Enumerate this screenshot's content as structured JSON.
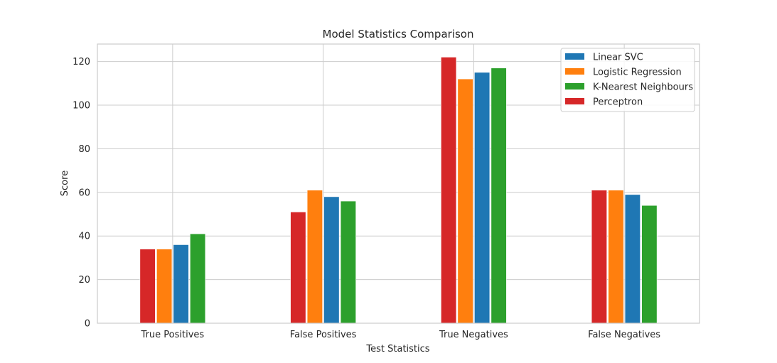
{
  "chart_data": {
    "type": "bar",
    "title": "Model Statistics Comparison",
    "xlabel": "Test Statistics",
    "ylabel": "Score",
    "categories": [
      "True Positives",
      "False Positives",
      "True Negatives",
      "False Negatives"
    ],
    "ylim": [
      0,
      128
    ],
    "yticks": [
      0,
      20,
      40,
      60,
      80,
      100,
      120
    ],
    "grid": true,
    "legend_position": "top-right",
    "bar_order": [
      "Perceptron",
      "Logistic Regression",
      "Linear SVC",
      "K-Nearest Neighbours"
    ],
    "series": [
      {
        "name": "Linear SVC",
        "color": "#1f77b4",
        "values": [
          36,
          58,
          115,
          59
        ]
      },
      {
        "name": "Logistic Regression",
        "color": "#ff7f0e",
        "values": [
          34,
          61,
          112,
          61
        ]
      },
      {
        "name": "K-Nearest Neighbours",
        "color": "#2ca02c",
        "values": [
          41,
          56,
          117,
          54
        ]
      },
      {
        "name": "Perceptron",
        "color": "#d62728",
        "values": [
          34,
          51,
          122,
          61
        ]
      }
    ]
  }
}
